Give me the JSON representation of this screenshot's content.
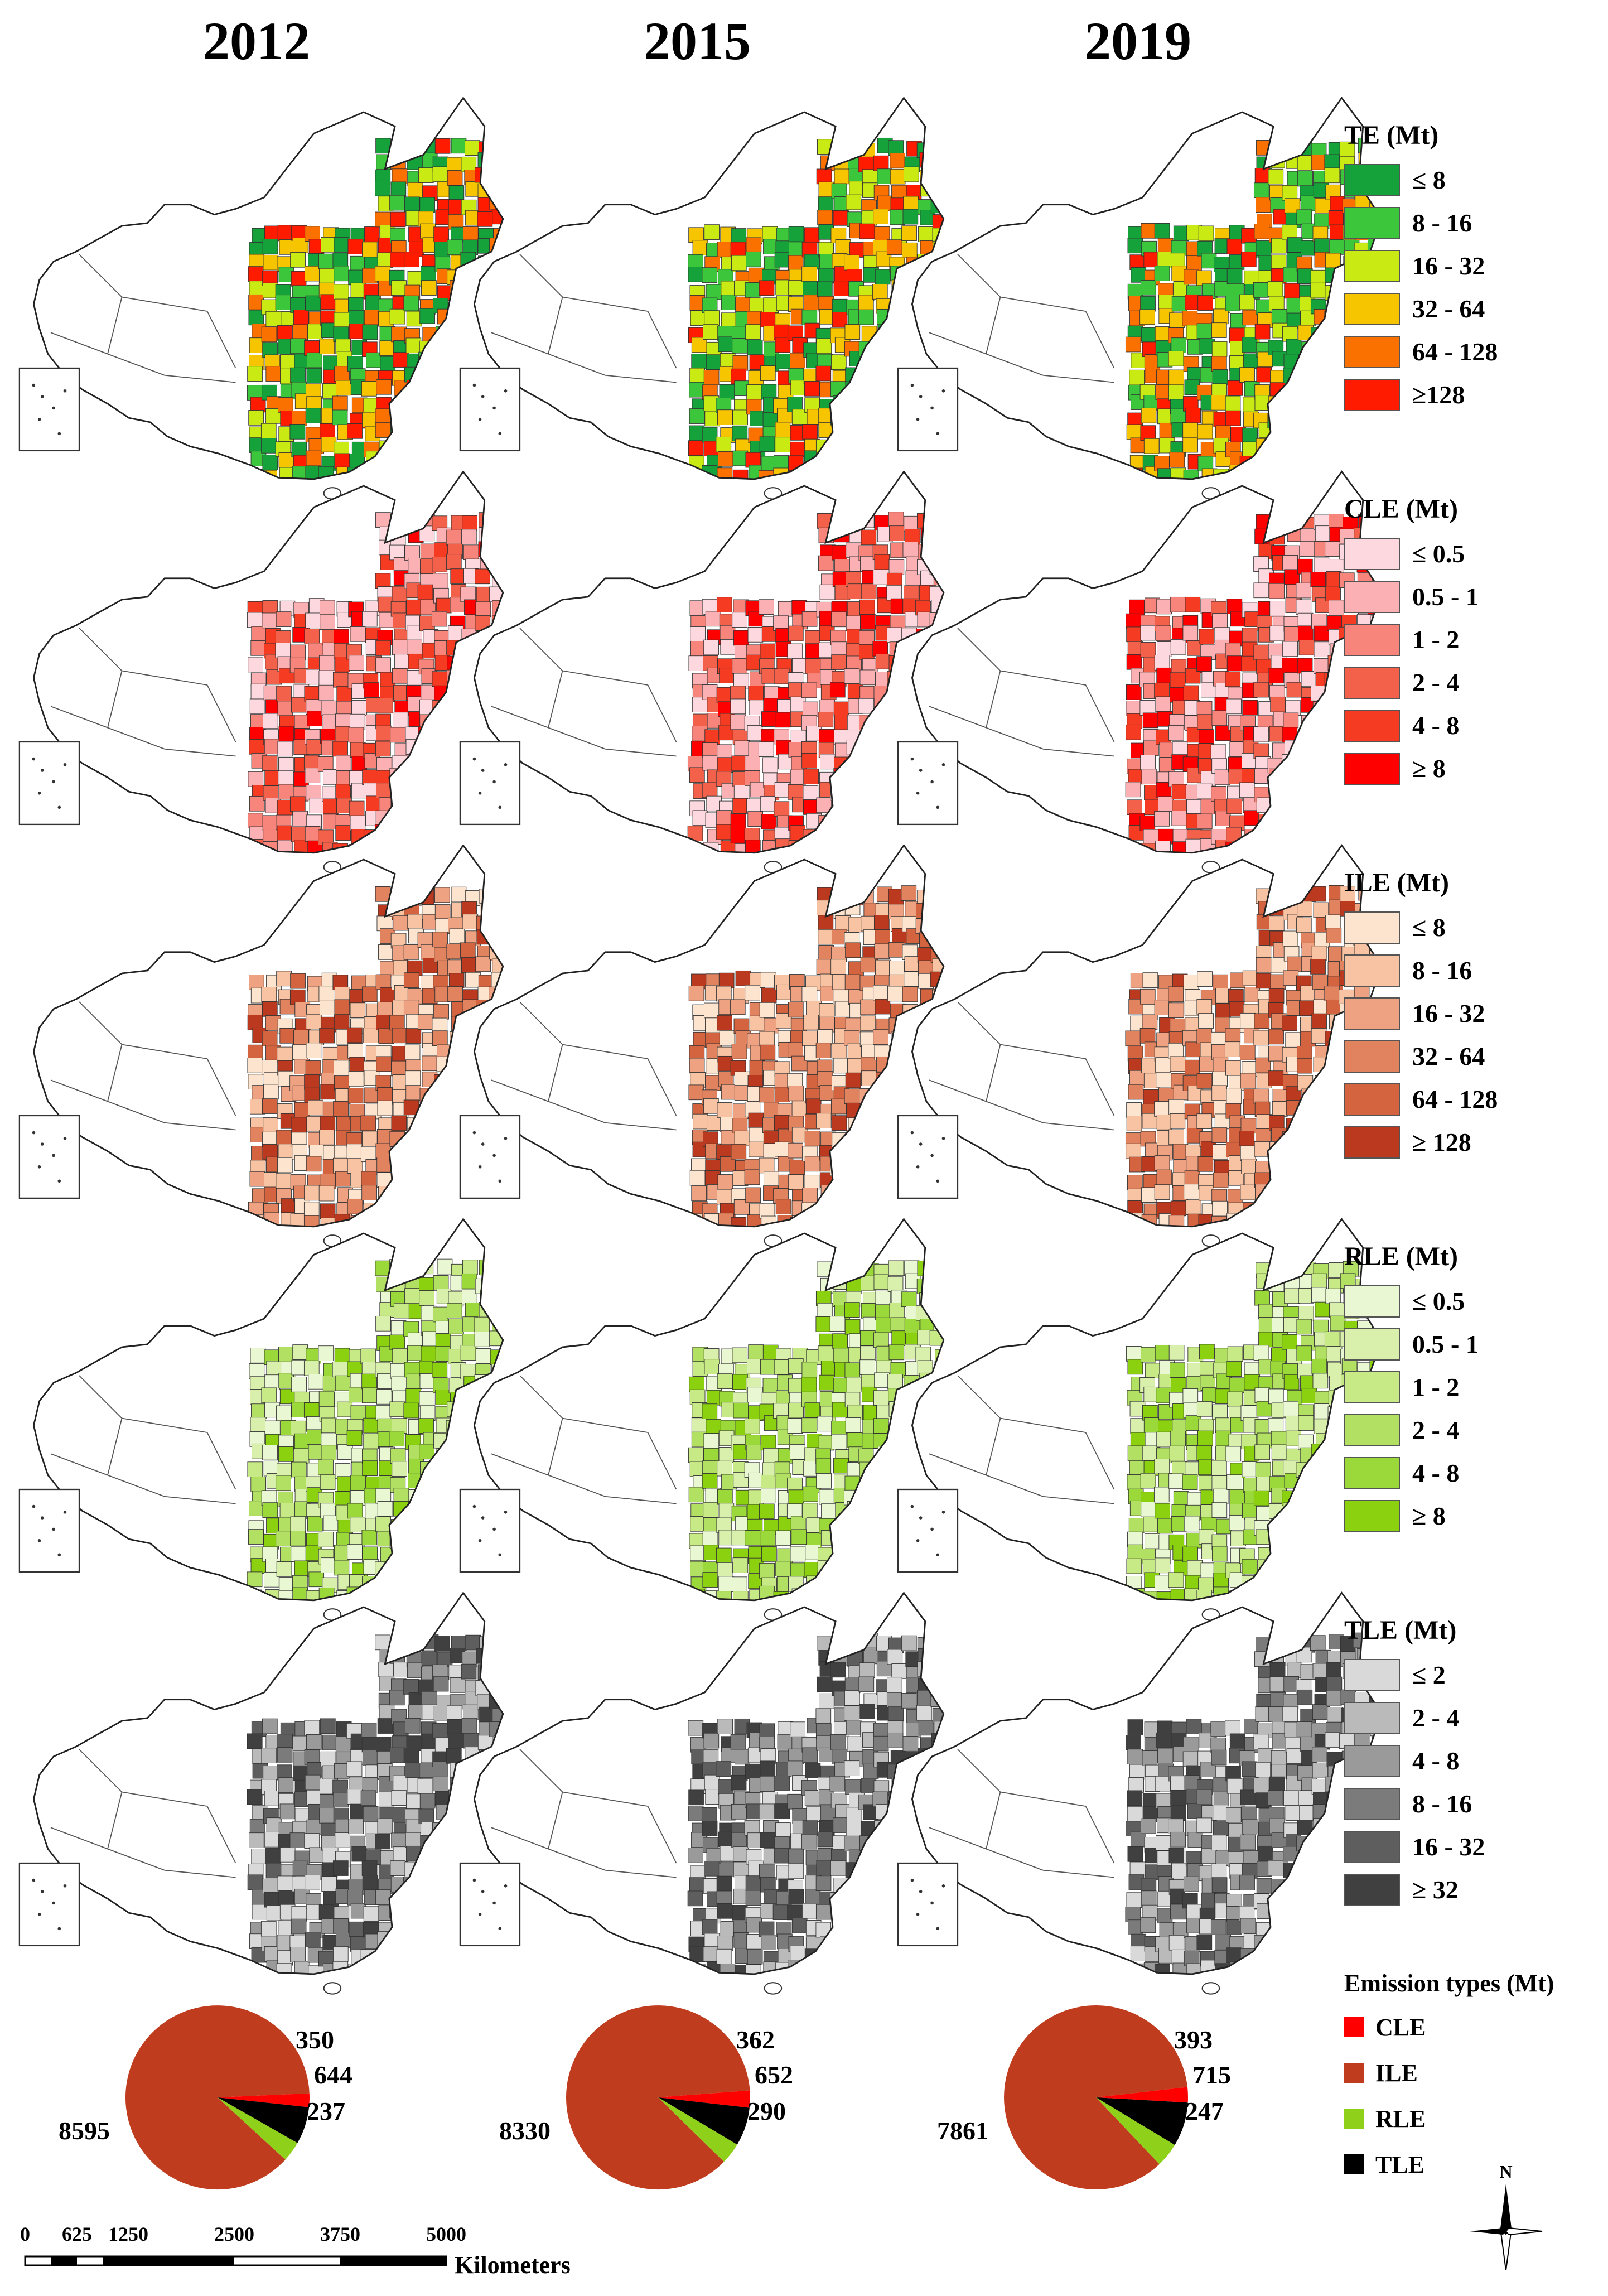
{
  "years": [
    "2012",
    "2015",
    "2019"
  ],
  "colors": {
    "outline": "#555555",
    "TE": [
      "#15a23a",
      "#3cc63c",
      "#c9ea12",
      "#f7c400",
      "#fb7100",
      "#fe1b00"
    ],
    "CLE": [
      "#fdd9df",
      "#fbb1b3",
      "#f8857c",
      "#f4614b",
      "#f53b22",
      "#ff0000"
    ],
    "ILE": [
      "#fde4cf",
      "#f8c3a3",
      "#efa282",
      "#e2835f",
      "#d4643f",
      "#bb3a1f"
    ],
    "RLE": [
      "#e9f8d2",
      "#d9f0ad",
      "#c8ea86",
      "#b2e062",
      "#9bd93a",
      "#8bd10f"
    ],
    "TLE": [
      "#d9d9d9",
      "#bababa",
      "#9a9a9a",
      "#7b7b7b",
      "#5e5e5e",
      "#404040"
    ],
    "pie": {
      "CLE": "#ff0000",
      "ILE": "#c03c1e",
      "RLE": "#8fd11a",
      "TLE": "#000000"
    }
  },
  "legends": [
    {
      "key": "TE",
      "title": "TE (Mt)",
      "classes": [
        "≤ 8",
        "8 - 16",
        "16 - 32",
        "32 - 64",
        "64 - 128",
        "≥128"
      ]
    },
    {
      "key": "CLE",
      "title": "CLE (Mt)",
      "classes": [
        "≤ 0.5",
        "0.5 - 1",
        "1 - 2",
        "2 - 4",
        "4 - 8",
        "≥ 8"
      ]
    },
    {
      "key": "ILE",
      "title": "ILE (Mt)",
      "classes": [
        "≤ 8",
        "8 - 16",
        "16 - 32",
        "32 - 64",
        "64 - 128",
        "≥ 128"
      ]
    },
    {
      "key": "RLE",
      "title": "RLE (Mt)",
      "classes": [
        "≤ 0.5",
        "0.5 - 1",
        "1 - 2",
        "2 - 4",
        "4 - 8",
        "≥ 8"
      ]
    },
    {
      "key": "TLE",
      "title": "TLE (Mt)",
      "classes": [
        "≤ 2",
        "2 - 4",
        "4 - 8",
        "8 - 16",
        "16 - 32",
        "≥ 32"
      ]
    }
  ],
  "chart_data": {
    "type": "pie",
    "title": "Emission types (Mt)",
    "categories": [
      "CLE",
      "ILE",
      "RLE",
      "TLE"
    ],
    "series": [
      {
        "name": "2012",
        "values": {
          "ILE": 8595,
          "RLE": 350,
          "TLE": 644,
          "CLE": 237
        }
      },
      {
        "name": "2015",
        "values": {
          "ILE": 8330,
          "RLE": 362,
          "TLE": 652,
          "CLE": 290
        }
      },
      {
        "name": "2019",
        "values": {
          "ILE": 7861,
          "RLE": 393,
          "TLE": 715,
          "CLE": 247
        }
      }
    ]
  },
  "scale_bar": {
    "ticks": [
      "0",
      "625",
      "1250",
      "2500",
      "3750",
      "5000"
    ],
    "unit": "Kilometers"
  },
  "north_arrow": {
    "label": "N"
  }
}
